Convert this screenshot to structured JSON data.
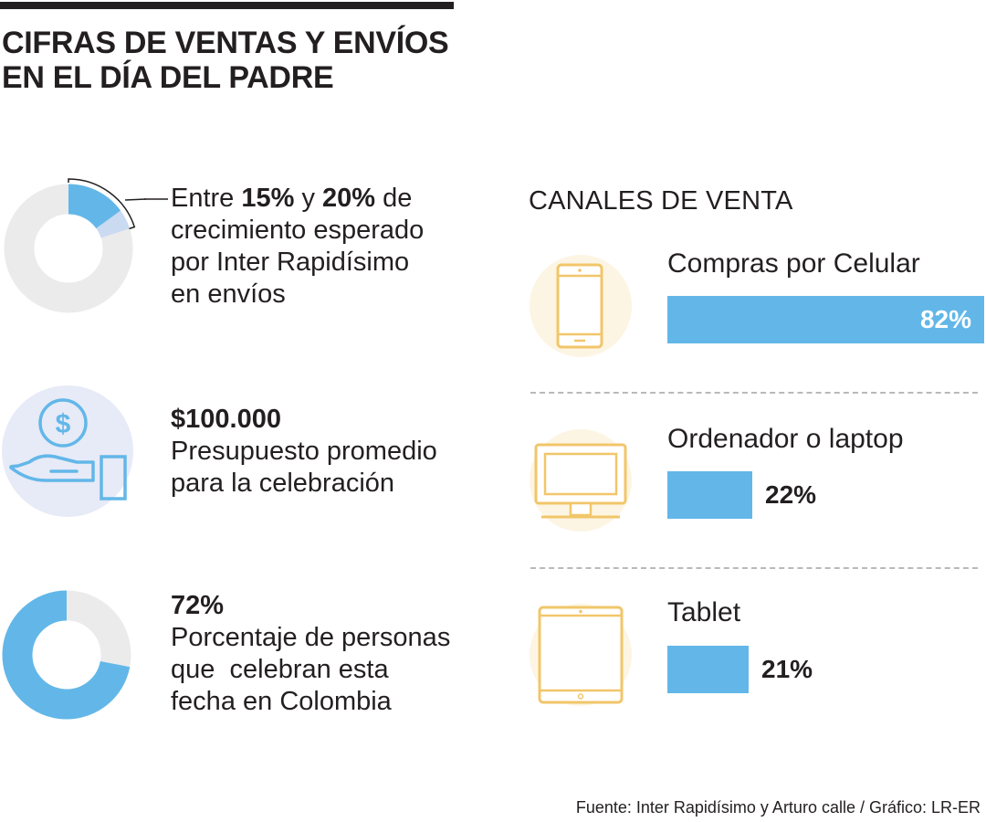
{
  "header": {
    "title_line1": "CIFRAS DE VENTAS Y ENVÍOS",
    "title_line2": "EN EL DÍA DEL PADRE"
  },
  "stats": [
    {
      "pre": "Entre ",
      "bold1": "15%",
      "mid": " y ",
      "bold2": "20%",
      "post": " de",
      "line2": "crecimiento esperado",
      "line3": "por Inter Rapidísimo",
      "line4": "en envíos",
      "growth_low_pct": 15,
      "growth_high_pct": 20
    },
    {
      "headline": "$100.000",
      "line2": "Presupuesto promedio",
      "line3": "para la celebración",
      "icon": "money-hand-icon"
    },
    {
      "headline": "72%",
      "line2": "Porcentaje de personas",
      "line3": "que  celebran esta",
      "line4": "fecha en Colombia",
      "pct": 72
    }
  ],
  "channels": {
    "title": "CANALES DE VENTA"
  },
  "chart_data": {
    "type": "bar",
    "orientation": "horizontal",
    "title": "CANALES DE VENTA",
    "categories": [
      "Compras por Celular",
      "Ordenador o laptop",
      "Tablet"
    ],
    "values": [
      82,
      22,
      21
    ],
    "value_labels": [
      "82%",
      "22%",
      "21%"
    ],
    "icons": [
      "smartphone-icon",
      "monitor-icon",
      "tablet-icon"
    ],
    "xlim": [
      0,
      82
    ],
    "unit": "%"
  },
  "colors": {
    "accent": "#62b7e8",
    "accent_light": "#c9daf1",
    "donut_bg": "#ebebeb",
    "icon_circle": "#fdf5e3",
    "icon_stroke": "#f1c66a",
    "money_circle": "#e7eaf7",
    "text": "#231f20"
  },
  "footer": {
    "source": "Fuente: Inter Rapidísimo y  Arturo calle / Gráfico: LR-ER"
  }
}
